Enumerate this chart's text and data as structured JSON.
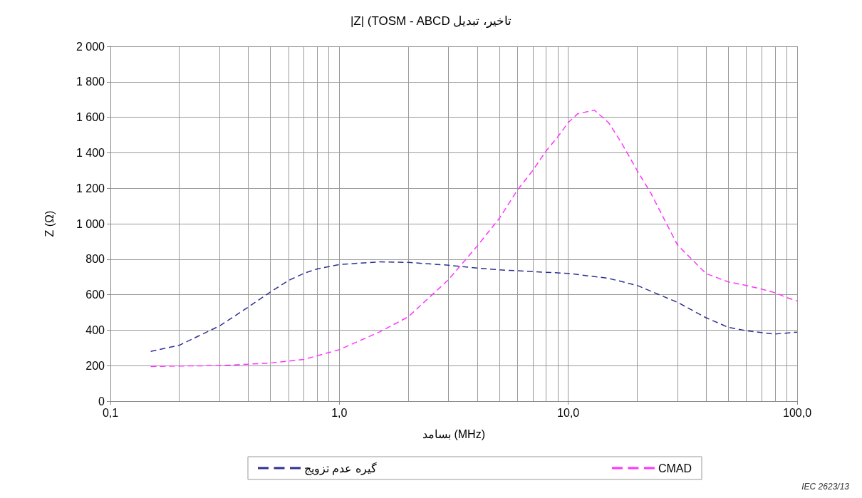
{
  "chart_data": {
    "type": "line",
    "title": "|Z| (TOSM - ABCD تاخیر، تبدیل",
    "xlabel": "بسامد (MHz)",
    "ylabel": "Z (Ω)",
    "log": "x",
    "grid": true,
    "legend": "bottom",
    "line_style": "dashed",
    "marker": "none",
    "xlim": [
      0.1,
      100
    ],
    "xticks": [
      {
        "value": 0.1,
        "label": "0,1"
      },
      {
        "value": 1,
        "label": "1,0"
      },
      {
        "value": 10,
        "label": "10,0"
      },
      {
        "value": 100,
        "label": "100,0"
      }
    ],
    "ylim": [
      0,
      2000
    ],
    "yticks": [
      0,
      200,
      400,
      600,
      800,
      {
        "value": 1000,
        "label": "1 000"
      },
      {
        "value": 1200,
        "label": "1 200"
      },
      {
        "value": 1400,
        "label": "1 400"
      },
      {
        "value": 1600,
        "label": "1 600"
      },
      {
        "value": 1800,
        "label": "1 800"
      },
      {
        "value": 2000,
        "label": "2 000"
      }
    ],
    "annotations": [
      "IEC 2623/13"
    ],
    "series": [
      {
        "name": "گیره عدم تزویج",
        "color": "#2e3192",
        "x": [
          0.15,
          0.2,
          0.3,
          0.4,
          0.5,
          0.6,
          0.7,
          0.8,
          1,
          1.5,
          2,
          3,
          4,
          5,
          7,
          10,
          15,
          20,
          30,
          40,
          50,
          60,
          80,
          100
        ],
        "values": [
          280,
          315,
          424,
          530,
          615,
          680,
          720,
          745,
          770,
          785,
          782,
          766,
          750,
          740,
          730,
          720,
          692,
          652,
          557,
          470,
          416,
          396,
          378,
          389
        ]
      },
      {
        "name": "CMAD",
        "color": "#ff33ff",
        "x": [
          0.15,
          0.2,
          0.3,
          0.4,
          0.5,
          0.7,
          1,
          1.5,
          2,
          3,
          4,
          5,
          6,
          7,
          8,
          9,
          10,
          11,
          13,
          15,
          17,
          20,
          23,
          30,
          40,
          50,
          60,
          70,
          80,
          90,
          100
        ],
        "values": [
          195,
          198,
          200,
          208,
          215,
          235,
          290,
          390,
          475,
          685,
          874,
          1030,
          1190,
          1300,
          1410,
          1490,
          1570,
          1620,
          1640,
          1570,
          1460,
          1300,
          1170,
          880,
          719,
          672,
          652,
          631,
          611,
          584,
          564
        ]
      }
    ]
  }
}
